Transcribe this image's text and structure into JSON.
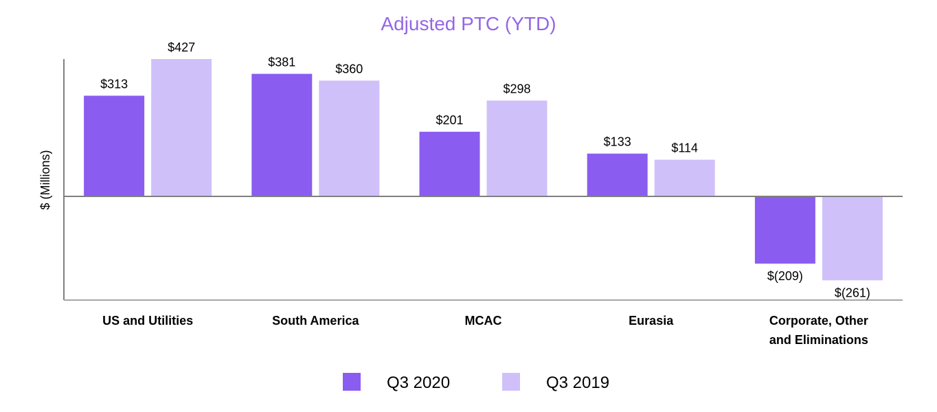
{
  "chart_data": {
    "type": "bar",
    "title": "Adjusted PTC (YTD)",
    "ylabel": "$ (Millions)",
    "xlabel": "",
    "ylim": [
      -300,
      445
    ],
    "categories": [
      [
        "US and Utilities"
      ],
      [
        "South America"
      ],
      [
        "MCAC"
      ],
      [
        "Eurasia"
      ],
      [
        "Corporate, Other",
        "and Eliminations"
      ]
    ],
    "series": [
      {
        "name": "Q3 2020",
        "color": "#8b5cf0",
        "values": [
          313,
          381,
          201,
          133,
          -209
        ],
        "labels": [
          "$313",
          "$381",
          "$201",
          "$133",
          "$(209)"
        ]
      },
      {
        "name": "Q3 2019",
        "color": "#d0c0fa",
        "values": [
          427,
          360,
          298,
          114,
          -261
        ],
        "labels": [
          "$427",
          "$360",
          "$298",
          "$114",
          "$(261)"
        ]
      }
    ],
    "title_color": "#9466e6",
    "legend_position": "bottom-center",
    "grid": false
  }
}
